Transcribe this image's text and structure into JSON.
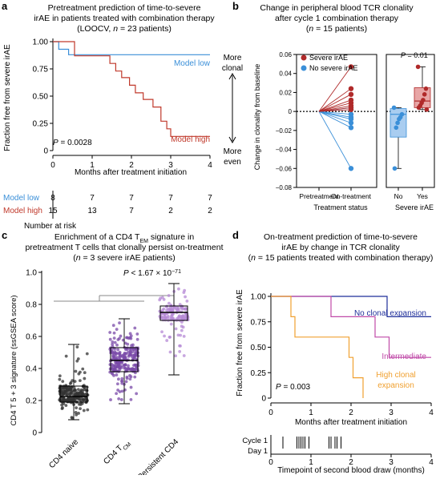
{
  "panels": {
    "a": {
      "label": "a",
      "title_lines": [
        "Pretreatment prediction of time-to-severe",
        "irAE in patients treated with combination therapy",
        "(LOOCV, n = 23 patients)"
      ],
      "ylabel": "Fraction free from severe irAE",
      "xlabel": "Months after treatment initiation",
      "p_value": "P = 0.0028",
      "risk_label": "Number at risk"
    },
    "b": {
      "label": "b",
      "title_lines": [
        "Change in peripheral blood TCR clonality",
        "after cycle 1 combination therapy",
        "(n = 15 patients)"
      ],
      "ylabel": "Change in clonality from baseline",
      "arrow_top": [
        "More",
        "clonal"
      ],
      "arrow_bottom": [
        "More",
        "even"
      ],
      "xlabel_left": "Treatment status",
      "xlabel_right": "Severe irAE",
      "p_value": "P = 0.01"
    },
    "c": {
      "label": "c",
      "title_lines": [
        "Enrichment of a CD4 T_EM signature in",
        "pretreatment T cells that clonally persist on-treatment",
        "(n = 3 severe irAE patients)"
      ],
      "ylabel": "CD4 T 5 + 3 signature (ssGSEA score)",
      "p_value": "P < 1.67 × 10^−71"
    },
    "d": {
      "label": "d",
      "title_lines": [
        "On-treatment prediction of time-to-severe",
        "irAE by change in TCR clonality",
        "(n = 15 patients treated with combination therapy)"
      ],
      "ylabel": "Fraction free from severe irAE",
      "xlabel": "Months after treatment initiation",
      "p_value": "P = 0.003",
      "bottom_xlabel": "Timepoint of second blood draw (months)",
      "rug_labels": [
        "Cycle 1",
        "Day 1"
      ]
    }
  },
  "chart_data": [
    {
      "panel": "a",
      "type": "line",
      "xlim": [
        0,
        4
      ],
      "ylim": [
        0,
        1
      ],
      "xticks": [
        0,
        1,
        2,
        3,
        4
      ],
      "yticks": [
        0,
        0.25,
        0.5,
        0.75,
        1.0
      ],
      "series": [
        {
          "name": "Model low",
          "color": "#3a8fd8",
          "steps": [
            [
              0,
              1.0
            ],
            [
              0.15,
              1.0
            ],
            [
              0.15,
              0.93
            ],
            [
              0.4,
              0.93
            ],
            [
              0.4,
              0.88
            ],
            [
              4,
              0.88
            ]
          ]
        },
        {
          "name": "Model high",
          "color": "#c0392b",
          "steps": [
            [
              0,
              1.0
            ],
            [
              0.55,
              1.0
            ],
            [
              0.55,
              0.87
            ],
            [
              1.45,
              0.87
            ],
            [
              1.45,
              0.8
            ],
            [
              1.6,
              0.8
            ],
            [
              1.6,
              0.73
            ],
            [
              1.75,
              0.73
            ],
            [
              1.75,
              0.67
            ],
            [
              1.95,
              0.67
            ],
            [
              1.95,
              0.6
            ],
            [
              2.1,
              0.6
            ],
            [
              2.1,
              0.53
            ],
            [
              2.3,
              0.53
            ],
            [
              2.3,
              0.47
            ],
            [
              2.55,
              0.47
            ],
            [
              2.55,
              0.4
            ],
            [
              2.75,
              0.4
            ],
            [
              2.75,
              0.27
            ],
            [
              2.9,
              0.27
            ],
            [
              2.9,
              0.2
            ],
            [
              3.0,
              0.2
            ],
            [
              3.0,
              0.13
            ],
            [
              4,
              0.13
            ]
          ]
        }
      ],
      "risk_table": [
        {
          "name": "Model low",
          "color": "#3a8fd8",
          "values": [
            "8",
            "7",
            "7",
            "7",
            "7"
          ]
        },
        {
          "name": "Model high",
          "color": "#c0392b",
          "values": [
            "15",
            "13",
            "7",
            "2",
            "2"
          ]
        }
      ]
    },
    {
      "panel": "b",
      "type": "scatter",
      "ylim": [
        -0.08,
        0.06
      ],
      "yticks": [
        "0.06",
        "0.04",
        "0.02",
        "0",
        "−0.02",
        "−0.04",
        "−0.06",
        "−0.08"
      ],
      "ytick_values": [
        0.06,
        0.04,
        0.02,
        0,
        -0.02,
        -0.04,
        -0.06,
        -0.08
      ],
      "categories_left": [
        "Pretreatment",
        "On-treatment"
      ],
      "categories_right": [
        "No",
        "Yes"
      ],
      "legend": [
        {
          "name": "Severe irAE",
          "color": "#b02a2a"
        },
        {
          "name": "No severe irAE",
          "color": "#3a8fd8"
        }
      ],
      "severe_values": [
        0.047,
        0.024,
        0.018,
        0.012,
        0.009,
        0.006,
        0.004,
        0.002
      ],
      "nonsevere_values": [
        0.004,
        -0.003,
        -0.006,
        -0.008,
        -0.012,
        -0.017,
        -0.06
      ],
      "box_no": {
        "q1": -0.027,
        "median": -0.003,
        "q3": 0.003,
        "min": -0.06,
        "max": 0.004,
        "color": "#a9cdf0",
        "edge": "#3a8fd8"
      },
      "box_yes": {
        "q1": 0.004,
        "median": 0.011,
        "q3": 0.025,
        "min": 0.002,
        "max": 0.047,
        "color": "#e8a6a6",
        "edge": "#b02a2a"
      },
      "no_points": [
        0.004,
        -0.003,
        -0.006,
        -0.008,
        -0.012,
        -0.017,
        -0.06
      ],
      "yes_points": [
        0.047,
        0.024,
        0.018,
        0.012,
        0.009,
        0.006,
        0.004,
        0.002
      ]
    },
    {
      "panel": "c",
      "type": "box",
      "ylim": [
        0,
        1
      ],
      "yticks": [
        0,
        0.2,
        0.4,
        0.6,
        0.8,
        1.0
      ],
      "categories": [
        "CD4 naive",
        "CD4 T_CM",
        "Persistent CD4"
      ],
      "boxes": [
        {
          "name": "CD4 naive",
          "color": "#333333",
          "fill": "#ffffff",
          "q1": 0.19,
          "median": 0.225,
          "q3": 0.29,
          "min": 0.08,
          "max": 0.55,
          "n": 220
        },
        {
          "name": "CD4 T_CM",
          "color": "#7a4aa8",
          "fill": "#ffffff",
          "q1": 0.38,
          "median": 0.45,
          "q3": 0.53,
          "min": 0.18,
          "max": 0.71,
          "n": 240
        },
        {
          "name": "Persistent CD4",
          "color": "#b58ad6",
          "fill": "#ffffff",
          "q1": 0.7,
          "median": 0.75,
          "q3": 0.79,
          "min": 0.36,
          "max": 0.93,
          "n": 140
        }
      ]
    },
    {
      "panel": "d",
      "type": "line",
      "xlim": [
        0,
        4
      ],
      "ylim": [
        0,
        1
      ],
      "xticks": [
        0,
        1,
        2,
        3,
        4
      ],
      "yticks": [
        0,
        0.25,
        0.5,
        0.75,
        1.0
      ],
      "series": [
        {
          "name": "No clonal expansion",
          "color": "#1f2f9a",
          "steps": [
            [
              0,
              1.0
            ],
            [
              2.9,
              1.0
            ],
            [
              2.9,
              0.8
            ],
            [
              4,
              0.8
            ]
          ]
        },
        {
          "name": "Intermediate",
          "color": "#c04aa8",
          "steps": [
            [
              0,
              1.0
            ],
            [
              1.5,
              1.0
            ],
            [
              1.5,
              0.8
            ],
            [
              2.6,
              0.8
            ],
            [
              2.6,
              0.6
            ],
            [
              2.95,
              0.6
            ],
            [
              2.95,
              0.4
            ],
            [
              4,
              0.4
            ]
          ]
        },
        {
          "name": "High clonal expansion",
          "color": "#f0a030",
          "steps": [
            [
              0,
              1.0
            ],
            [
              0.5,
              1.0
            ],
            [
              0.5,
              0.8
            ],
            [
              0.6,
              0.8
            ],
            [
              0.6,
              0.6
            ],
            [
              1.95,
              0.6
            ],
            [
              1.95,
              0.4
            ],
            [
              2.05,
              0.4
            ],
            [
              2.05,
              0.2
            ],
            [
              2.3,
              0.2
            ],
            [
              2.3,
              0.0
            ]
          ]
        }
      ],
      "series_labels": [
        "No clonal expansion",
        "Intermediate",
        "High clonal",
        "expansion"
      ],
      "rug_ticks": [
        0.3,
        0.65,
        0.7,
        0.75,
        0.8,
        0.85,
        0.95,
        1.45,
        1.5,
        1.6,
        1.65,
        1.75
      ]
    }
  ]
}
